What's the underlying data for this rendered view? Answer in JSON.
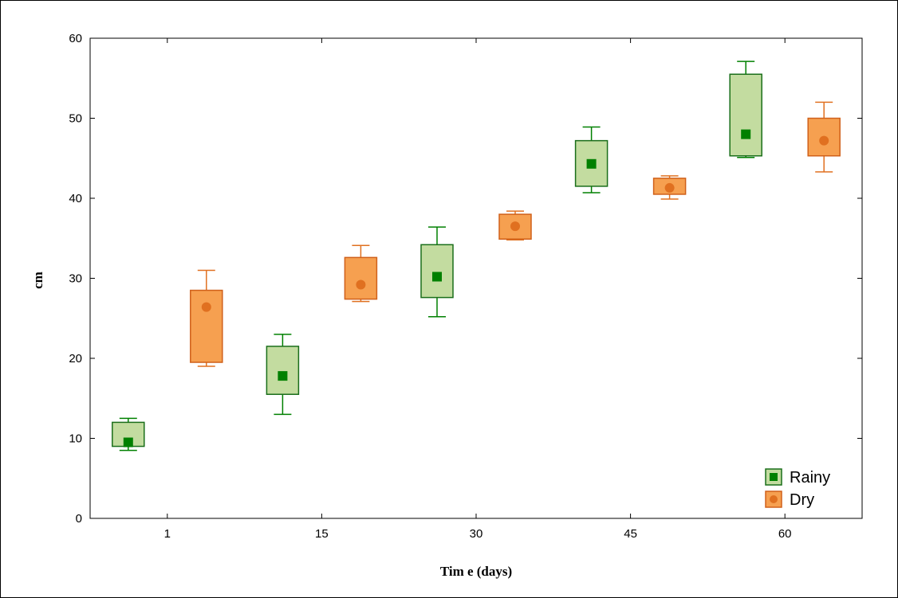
{
  "chart_data": {
    "type": "boxplot",
    "xlabel": "Tim e (days)",
    "ylabel": "cm",
    "categories": [
      "1",
      "15",
      "30",
      "45",
      "60"
    ],
    "ylim": [
      0,
      60
    ],
    "yticks": [
      0,
      10,
      20,
      30,
      40,
      50,
      60
    ],
    "grid": false,
    "legend_position": "bottom-right",
    "series": [
      {
        "name": "Rainy",
        "color": "#008000",
        "box_fill": "#c3dca0",
        "marker": "square",
        "stats": [
          {
            "whisker_low": 8.5,
            "q1": 9.0,
            "median": 9.5,
            "q3": 12.0,
            "whisker_high": 12.5
          },
          {
            "whisker_low": 13.0,
            "q1": 15.5,
            "median": 17.8,
            "q3": 21.5,
            "whisker_high": 23.0
          },
          {
            "whisker_low": 25.2,
            "q1": 27.6,
            "median": 30.2,
            "q3": 34.2,
            "whisker_high": 36.4
          },
          {
            "whisker_low": 40.7,
            "q1": 41.5,
            "median": 44.3,
            "q3": 47.2,
            "whisker_high": 48.9
          },
          {
            "whisker_low": 45.1,
            "q1": 45.3,
            "median": 48.0,
            "q3": 55.5,
            "whisker_high": 57.1
          }
        ]
      },
      {
        "name": "Dry",
        "color": "#e07020",
        "box_fill": "#f6a050",
        "marker": "circle",
        "stats": [
          {
            "whisker_low": 19.0,
            "q1": 19.5,
            "median": 26.4,
            "q3": 28.5,
            "whisker_high": 31.0
          },
          {
            "whisker_low": 27.1,
            "q1": 27.4,
            "median": 29.2,
            "q3": 32.6,
            "whisker_high": 34.1
          },
          {
            "whisker_low": 34.8,
            "q1": 34.9,
            "median": 36.5,
            "q3": 38.0,
            "whisker_high": 38.4
          },
          {
            "whisker_low": 39.9,
            "q1": 40.5,
            "median": 41.3,
            "q3": 42.5,
            "whisker_high": 42.8
          },
          {
            "whisker_low": 43.3,
            "q1": 45.3,
            "median": 47.2,
            "q3": 50.0,
            "whisker_high": 52.0
          }
        ]
      }
    ]
  }
}
